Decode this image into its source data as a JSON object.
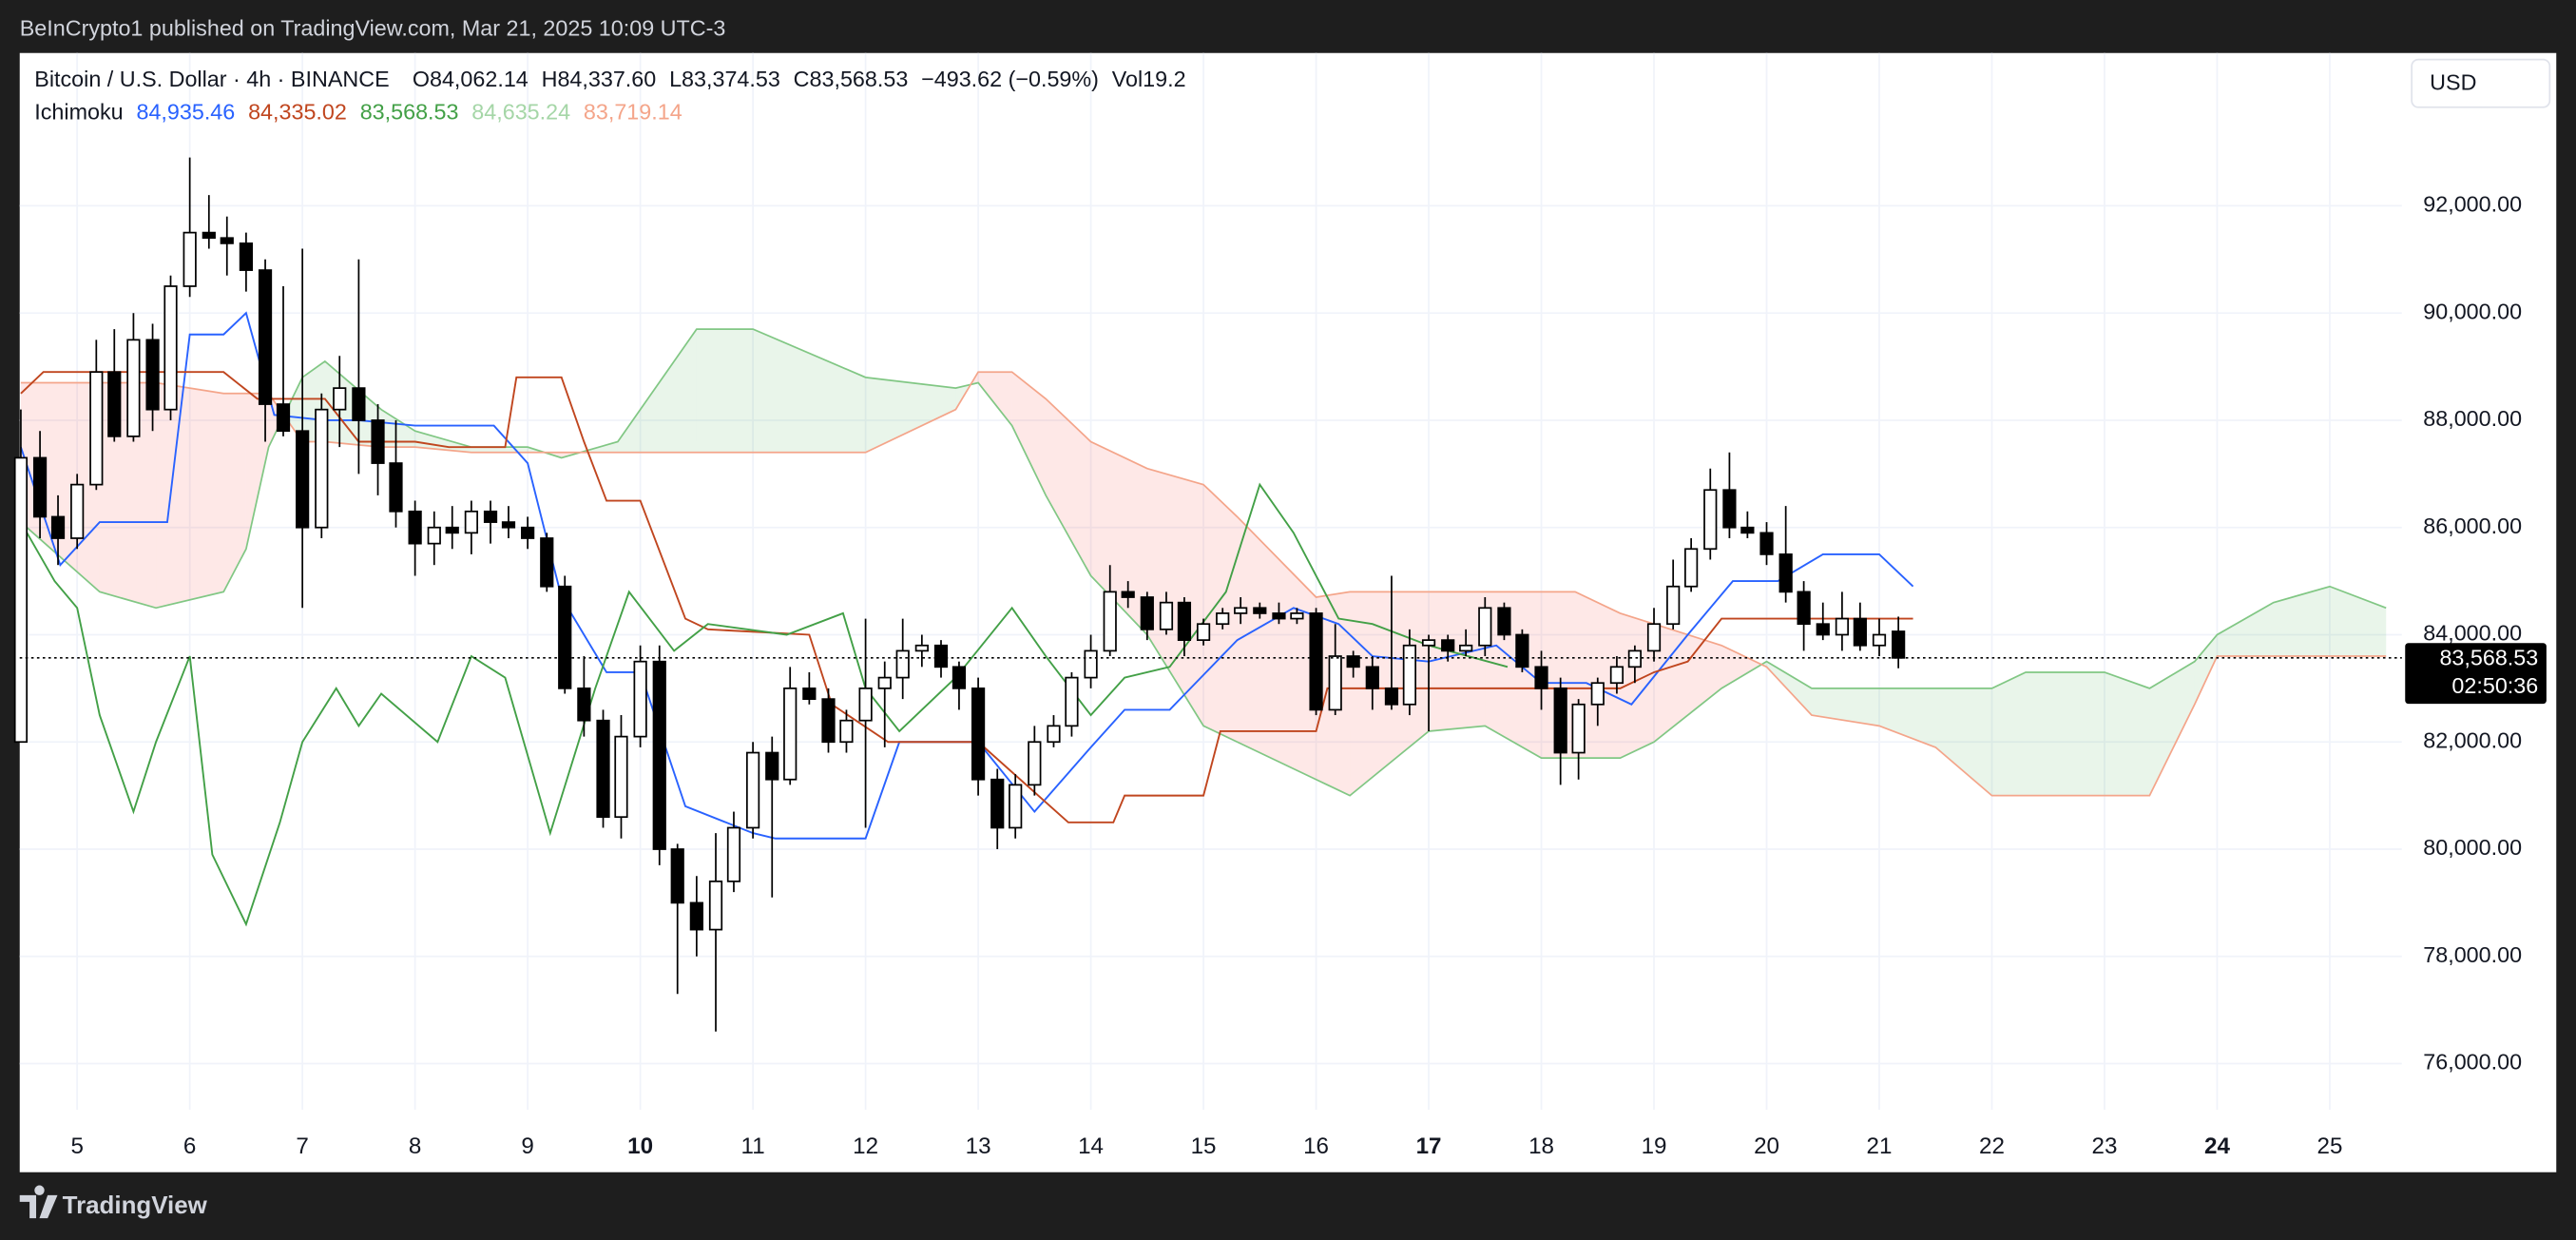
{
  "header": {
    "published": "BeInCrypto1 published on TradingView.com, Mar 21, 2025 10:09 UTC-3",
    "currency": "USD",
    "brand": "TradingView"
  },
  "chart_data": {
    "type": "candlestick",
    "title": "Bitcoin / U.S. Dollar · 4h · BINANCE",
    "ohlc_labels": [
      "O84,062.14",
      "H84,337.60",
      "L83,374.53",
      "C83,568.53",
      "−493.62 (−0.59%)",
      "Vol19.2"
    ],
    "indicator": {
      "name": "Ichimoku",
      "labels": [
        "84,935.46",
        "84,335.02",
        "83,568.53",
        "84,635.24",
        "83,719.14"
      ],
      "label_colors": [
        "#2962ff",
        "#c0461f",
        "#43a047",
        "#a5d6a7",
        "#f4a58a"
      ]
    },
    "last_price_label": "83,568.53",
    "countdown": "02:50:36",
    "up_color": "#ffffff",
    "down_color": "#000000",
    "outline_color": "#000000",
    "x": [
      4.5,
      4.67,
      4.83,
      5,
      5.17,
      5.33,
      5.5,
      5.67,
      5.83,
      6,
      6.17,
      6.33,
      6.5,
      6.67,
      6.83,
      7,
      7.17,
      7.33,
      7.5,
      7.67,
      7.83,
      8,
      8.17,
      8.33,
      8.5,
      8.67,
      8.83,
      9,
      9.17,
      9.33,
      9.5,
      9.67,
      9.83,
      10,
      10.17,
      10.33,
      10.5,
      10.67,
      10.83,
      11,
      11.17,
      11.33,
      11.5,
      11.67,
      11.83,
      12,
      12.17,
      12.33,
      12.5,
      12.67,
      12.83,
      13,
      13.17,
      13.33,
      13.5,
      13.67,
      13.83,
      14,
      14.17,
      14.33,
      14.5,
      14.67,
      14.83,
      15,
      15.17,
      15.33,
      15.5,
      15.67,
      15.83,
      16,
      16.17,
      16.33,
      16.5,
      16.67,
      16.83,
      17,
      17.17,
      17.33,
      17.5,
      17.67,
      17.83,
      18,
      18.17,
      18.33,
      18.5,
      18.67,
      18.83,
      19,
      19.17,
      19.33,
      19.5,
      19.67,
      19.83,
      20,
      20.17,
      20.33,
      20.5,
      20.67,
      20.83,
      21,
      21.17
    ],
    "open": [
      82000,
      87300,
      86200,
      85800,
      86800,
      88900,
      87700,
      89500,
      88200,
      90500,
      91500,
      91400,
      91300,
      90800,
      88300,
      87800,
      86000,
      88200,
      88600,
      88000,
      87200,
      86300,
      85700,
      86000,
      85900,
      86300,
      86100,
      86000,
      85800,
      84900,
      83000,
      82400,
      80600,
      82100,
      83500,
      80000,
      79000,
      78500,
      79400,
      80400,
      81800,
      81300,
      83000,
      82800,
      82000,
      82400,
      83000,
      83200,
      83700,
      83800,
      83400,
      83000,
      81300,
      80400,
      81200,
      82000,
      82300,
      83200,
      83700,
      84800,
      84700,
      84100,
      84600,
      83900,
      84200,
      84400,
      84500,
      84400,
      84300,
      84400,
      82600,
      83600,
      83400,
      83000,
      82700,
      83800,
      83900,
      83700,
      83800,
      84500,
      84000,
      83400,
      83000,
      81800,
      82700,
      83100,
      83400,
      83700,
      84200,
      84900,
      85600,
      86700,
      86000,
      85900,
      85500,
      84800,
      84200,
      84000,
      84300,
      83800,
      84062.14
    ],
    "high": [
      88200,
      87800,
      86600,
      87000,
      89500,
      89700,
      90000,
      89800,
      90700,
      92900,
      92200,
      91800,
      91500,
      91000,
      90500,
      91200,
      88500,
      89200,
      91000,
      88300,
      88000,
      86500,
      86300,
      86400,
      86500,
      86500,
      86400,
      86200,
      85900,
      85100,
      83600,
      82600,
      82500,
      83800,
      83800,
      80100,
      79500,
      80300,
      80700,
      82000,
      82100,
      83400,
      83300,
      83000,
      82600,
      84300,
      83500,
      84300,
      84000,
      83900,
      83500,
      83200,
      81500,
      81400,
      82300,
      82500,
      83300,
      84000,
      85300,
      85000,
      84800,
      84800,
      84700,
      84300,
      84500,
      84700,
      84600,
      84600,
      84500,
      84500,
      84200,
      83700,
      83600,
      85100,
      84100,
      84000,
      84000,
      84100,
      84700,
      84600,
      84100,
      83700,
      83200,
      82800,
      83200,
      83600,
      83800,
      84500,
      85400,
      85800,
      87100,
      87400,
      86300,
      86100,
      86400,
      85000,
      84600,
      84800,
      84600,
      84300,
      84337.6
    ],
    "low": [
      82000,
      85800,
      85300,
      85600,
      86700,
      87600,
      87600,
      87800,
      88000,
      90300,
      91200,
      90700,
      90400,
      87600,
      87700,
      84500,
      85800,
      87500,
      87000,
      86600,
      86000,
      85100,
      85300,
      85600,
      85500,
      85700,
      85800,
      85600,
      84800,
      82900,
      82100,
      80400,
      80200,
      81900,
      79700,
      77300,
      78000,
      76600,
      79200,
      80200,
      79100,
      81200,
      82700,
      81800,
      81800,
      80400,
      81900,
      82800,
      83400,
      83200,
      82600,
      81000,
      80000,
      80200,
      81000,
      81900,
      82100,
      83000,
      83600,
      84500,
      83900,
      84000,
      83600,
      83800,
      84100,
      84200,
      84300,
      84200,
      84200,
      82500,
      82500,
      83200,
      82600,
      82600,
      82500,
      82200,
      83500,
      83600,
      83600,
      83900,
      83300,
      82600,
      81200,
      81300,
      82300,
      82900,
      83100,
      83500,
      84100,
      84800,
      85400,
      85800,
      85800,
      85300,
      84600,
      83700,
      83900,
      83700,
      83700,
      83600,
      83374.53
    ],
    "close": [
      87300,
      86200,
      85800,
      86800,
      88900,
      87700,
      89500,
      88200,
      90500,
      91500,
      91400,
      91300,
      90800,
      88300,
      87800,
      86000,
      88200,
      88600,
      88000,
      87200,
      86300,
      85700,
      86000,
      85900,
      86300,
      86100,
      86000,
      85800,
      84900,
      83000,
      82400,
      80600,
      82100,
      83500,
      80000,
      79000,
      78500,
      79400,
      80400,
      81800,
      81300,
      83000,
      82800,
      82000,
      82400,
      83000,
      83200,
      83700,
      83800,
      83400,
      83000,
      81300,
      80400,
      81200,
      82000,
      82300,
      83200,
      83700,
      84800,
      84700,
      84100,
      84600,
      83900,
      84200,
      84400,
      84500,
      84400,
      84300,
      84400,
      82600,
      83600,
      83400,
      83000,
      82700,
      83800,
      83900,
      83700,
      83800,
      84500,
      84000,
      83400,
      83000,
      81800,
      82700,
      83100,
      83400,
      83700,
      84200,
      84900,
      85600,
      86700,
      86000,
      85900,
      85500,
      84800,
      84200,
      84000,
      84300,
      83800,
      84000,
      83568.53
    ],
    "series": [
      {
        "color": "#2962ff",
        "x": [
          4.5,
          4.85,
          5.2,
          5.8,
          6,
          6.3,
          6.5,
          6.75,
          7.2,
          7.5,
          8,
          8.7,
          9,
          9.3,
          9.7,
          10,
          10.4,
          11,
          11.2,
          12,
          12.3,
          13,
          13.5,
          14,
          14.3,
          14.7,
          15.3,
          15.8,
          16.2,
          16.5,
          17,
          17.6,
          18,
          18.4,
          18.8,
          19.3,
          19.7,
          20.1,
          20.5,
          21,
          21.3
        ],
        "values": [
          87500,
          85300,
          86100,
          86100,
          89600,
          89600,
          90000,
          88100,
          88000,
          88000,
          87900,
          87900,
          87200,
          84700,
          83300,
          83300,
          80800,
          80300,
          80200,
          80200,
          82000,
          82000,
          80700,
          81900,
          82600,
          82600,
          83900,
          84500,
          84200,
          83600,
          83500,
          83800,
          83100,
          83100,
          82700,
          84000,
          85000,
          85000,
          85500,
          85500,
          84900
        ]
      },
      {
        "color": "#c0461f",
        "x": [
          4.5,
          4.7,
          5.9,
          6.3,
          6.6,
          7.2,
          7.5,
          8,
          8.3,
          8.8,
          8.9,
          9.3,
          9.5,
          9.7,
          10,
          10.4,
          10.6,
          11.5,
          11.7,
          12.2,
          13,
          13.8,
          14.2,
          14.3,
          15,
          15.15,
          16,
          16.1,
          18.7,
          19,
          19.3,
          19.6,
          21.3
        ],
        "values": [
          88500,
          88900,
          88900,
          88900,
          88400,
          88400,
          87600,
          87600,
          87500,
          87500,
          88800,
          88800,
          87600,
          86500,
          86500,
          84300,
          84100,
          84000,
          82700,
          82000,
          82000,
          80500,
          80500,
          81000,
          81000,
          82200,
          82200,
          83000,
          83000,
          83300,
          83500,
          84300,
          84300
        ]
      },
      {
        "color": "#43a047",
        "x": [
          4.5,
          4.8,
          5,
          5.2,
          5.5,
          5.7,
          6,
          6.2,
          6.5,
          6.8,
          7,
          7.3,
          7.5,
          7.7,
          8.2,
          8.5,
          8.8,
          9.2,
          9.6,
          9.9,
          10.3,
          10.6,
          11.3,
          11.8,
          12,
          12.3,
          12.8,
          13.3,
          13.6,
          14,
          14.3,
          14.7,
          15.2,
          15.5,
          15.8,
          16.2,
          16.5,
          17,
          17.7
        ],
        "values": [
          86100,
          85000,
          84500,
          82500,
          80700,
          82000,
          83600,
          79900,
          78600,
          80500,
          82000,
          83000,
          82300,
          82900,
          82000,
          83600,
          83200,
          80300,
          83000,
          84800,
          83700,
          84200,
          84000,
          84400,
          83000,
          82200,
          83200,
          84500,
          83600,
          82500,
          83200,
          83400,
          84800,
          86800,
          85900,
          84300,
          84200,
          83800,
          83400
        ]
      }
    ],
    "cloud": {
      "x": [
        4.5,
        5.2,
        5.7,
        6.3,
        6.5,
        6.7,
        7,
        7.2,
        7.7,
        8,
        8.5,
        9,
        9.3,
        9.8,
        10.5,
        11,
        12,
        12.8,
        13,
        13.3,
        13.6,
        14,
        14.5,
        15,
        15.3,
        16,
        16.3,
        17,
        17.5,
        18,
        18.3,
        18.7,
        19,
        19.3,
        19.6,
        20,
        20.4,
        21,
        21.5,
        22,
        22.3,
        23,
        23.4,
        23.8,
        24,
        24.5,
        25,
        25.5
      ],
      "span_a": {
        "color": "#81c784",
        "values": [
          86100,
          84800,
          84500,
          84800,
          85600,
          87500,
          88800,
          89100,
          88200,
          87800,
          87500,
          87500,
          87300,
          87600,
          89700,
          89700,
          88800,
          88600,
          88700,
          87900,
          86600,
          85100,
          84000,
          82300,
          82000,
          81300,
          81000,
          82200,
          82300,
          81700,
          81700,
          81700,
          82000,
          82500,
          83000,
          83500,
          83000,
          83000,
          83000,
          83000,
          83300,
          83300,
          83000,
          83500,
          84000,
          84600,
          84900,
          84500
        ]
      },
      "span_b": {
        "color": "#f4a58a",
        "values": [
          88700,
          88700,
          88700,
          88500,
          88500,
          88500,
          87600,
          87600,
          87500,
          87500,
          87400,
          87400,
          87400,
          87400,
          87400,
          87400,
          87400,
          88200,
          88900,
          88900,
          88400,
          87600,
          87100,
          86800,
          86200,
          84700,
          84800,
          84800,
          84800,
          84800,
          84800,
          84400,
          84200,
          84000,
          83800,
          83400,
          82500,
          82300,
          81900,
          81000,
          81000,
          81000,
          81000,
          82700,
          83600,
          83600,
          83600,
          83600
        ]
      },
      "bull_fill": "rgba(76,175,80,0.12)",
      "bear_fill": "rgba(244,67,54,0.12)"
    },
    "xlim": [
      4.49,
      25.64
    ],
    "ylim": [
      75140,
      94850
    ],
    "xticks": [
      5,
      6,
      7,
      8,
      9,
      10,
      11,
      12,
      13,
      14,
      15,
      16,
      17,
      18,
      19,
      20,
      21,
      22,
      23,
      24,
      25
    ],
    "week_starts": [
      10,
      17,
      24
    ],
    "yticks": [
      {
        "value": 76000,
        "label": "76,000.00"
      },
      {
        "value": 78000,
        "label": "78,000.00"
      },
      {
        "value": 80000,
        "label": "80,000.00"
      },
      {
        "value": 82000,
        "label": "82,000.00"
      },
      {
        "value": 84000,
        "label": "84,000.00"
      },
      {
        "value": 86000,
        "label": "86,000.00"
      },
      {
        "value": 88000,
        "label": "88,000.00"
      },
      {
        "value": 90000,
        "label": "90,000.00"
      },
      {
        "value": 92000,
        "label": "92,000.00"
      }
    ],
    "grid": true
  }
}
